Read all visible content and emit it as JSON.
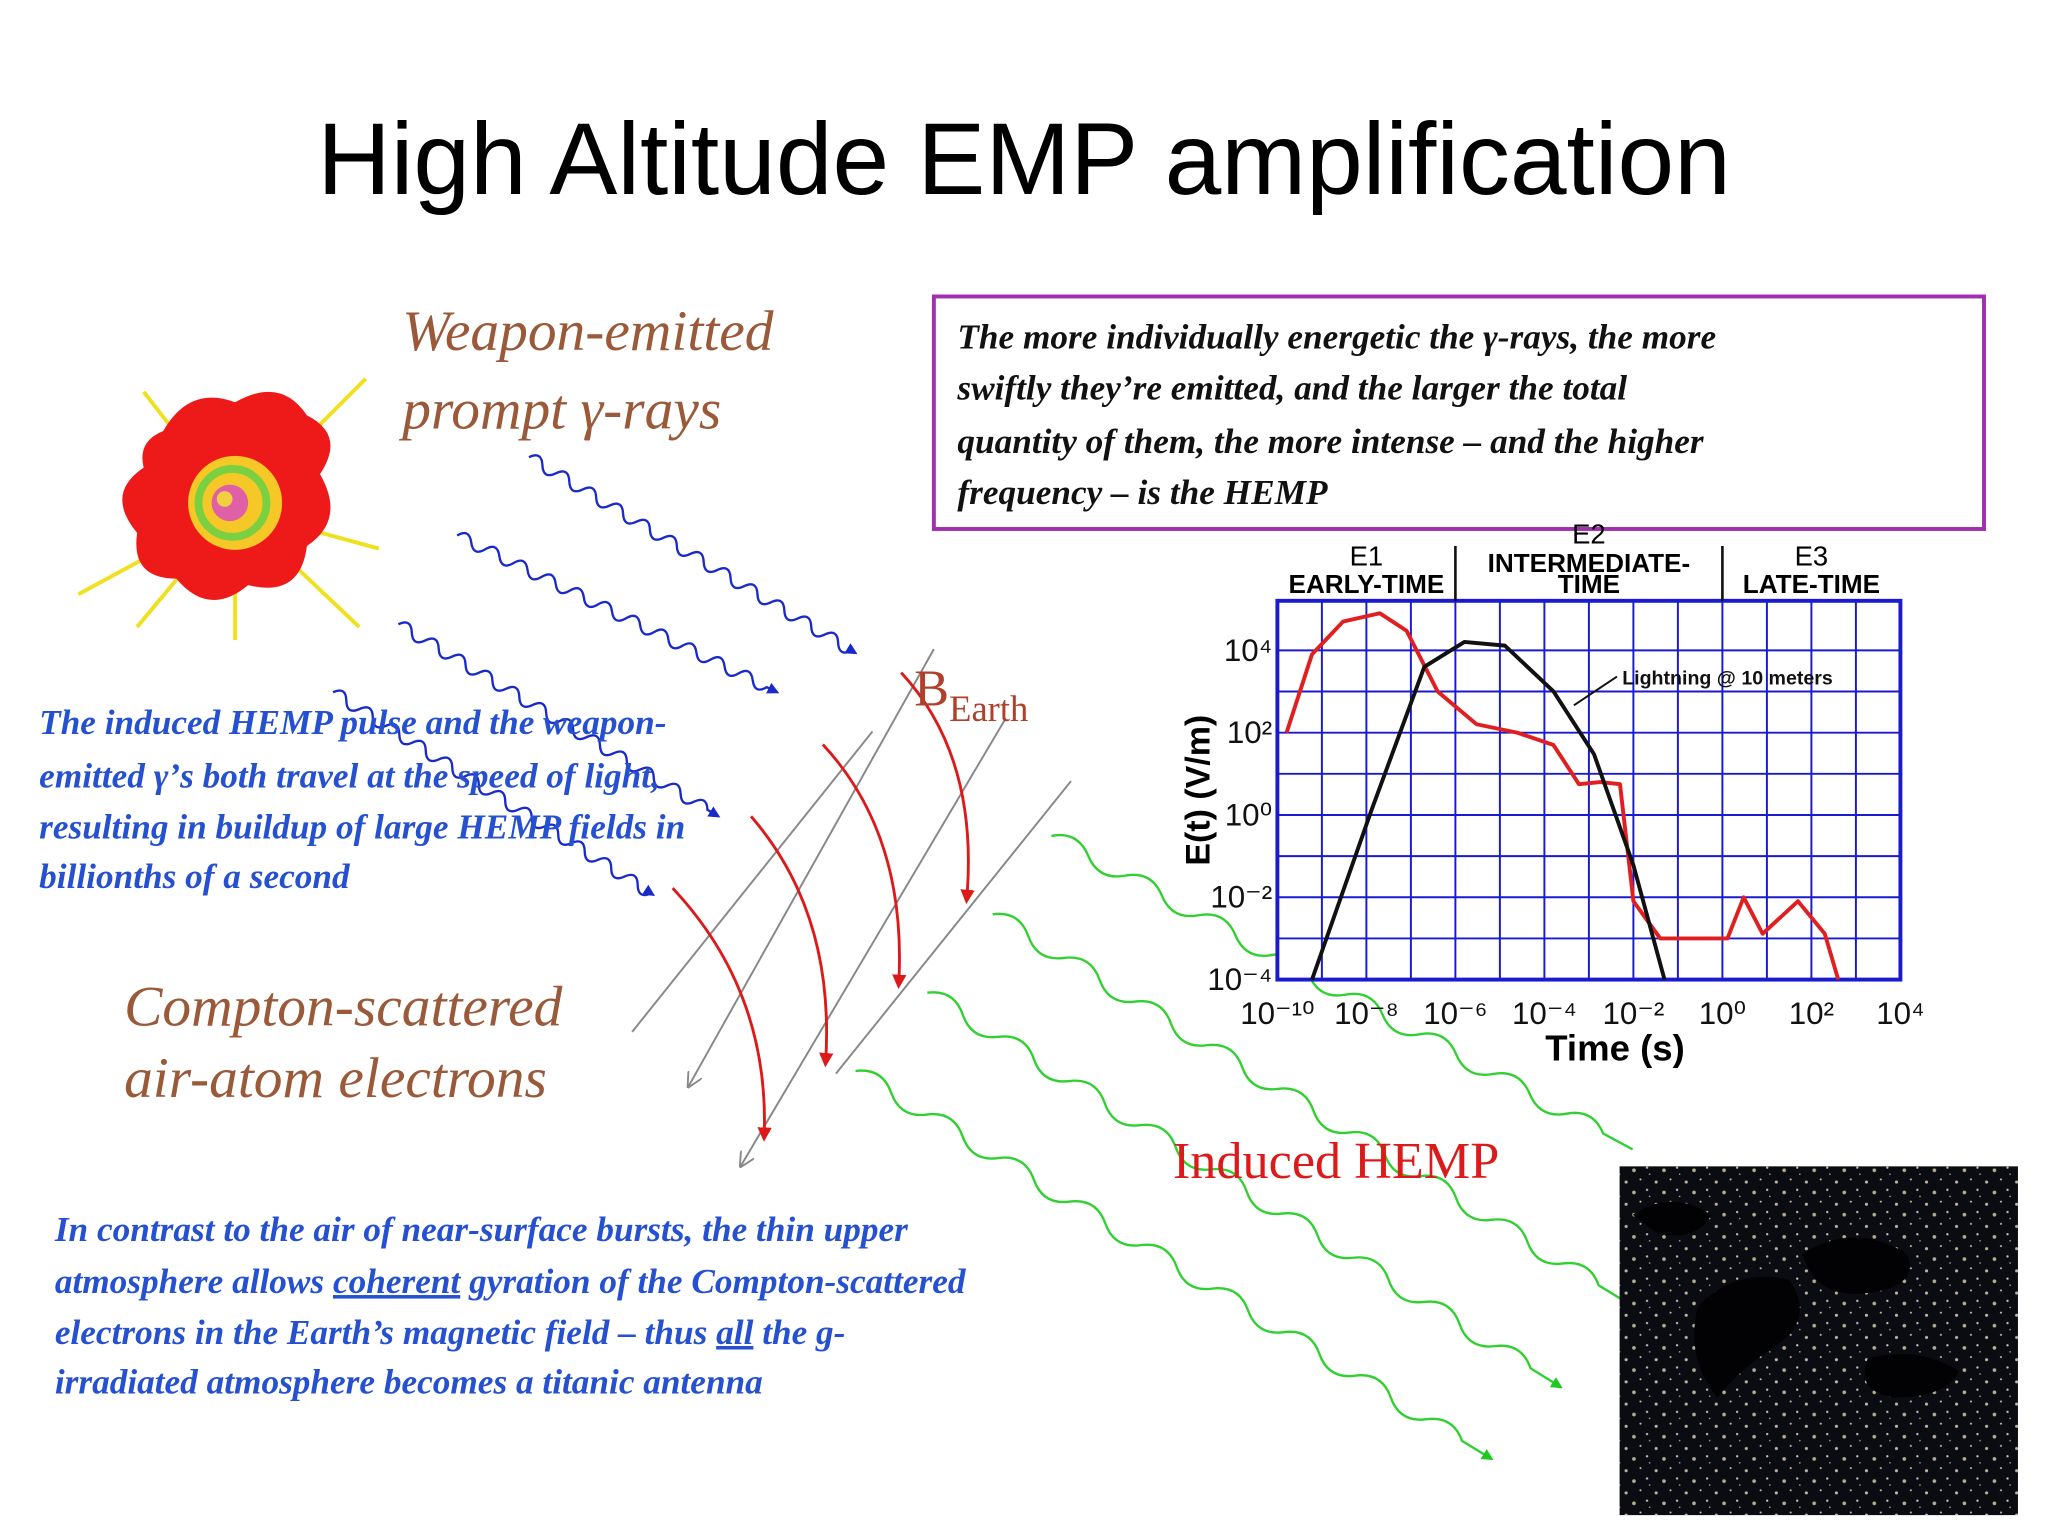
{
  "title": "High Altitude EMP amplification",
  "labels": {
    "weapon_emitted": [
      "Weapon-emitted",
      "prompt γ-rays"
    ],
    "info_box": [
      "The more individually energetic the γ-rays, the more",
      "swiftly they’re emitted, and the larger the total",
      "quantity of them, the more intense – and the higher",
      "frequency – is the HEMP"
    ],
    "induced_pulse": [
      "The induced HEMP pulse and the weapon-",
      "emitted  γ’s both travel at the speed of light,",
      "resulting in buildup of large HEMP fields in",
      "billionths of a second"
    ],
    "compton": [
      "Compton-scattered",
      "air-atom electrons"
    ],
    "b_earth": {
      "symbol": "B",
      "subscript": "Earth"
    },
    "induced_hemp": "Induced HEMP",
    "contrast": [
      "In contrast to the air of near-surface bursts, the thin upper",
      {
        "before": "atmosphere allows ",
        "underlined": "coherent",
        "after": " gyration of the Compton-scattered"
      },
      {
        "before": "electrons in the Earth’s magnetic field – thus ",
        "underlined": "all",
        "after": " the g-"
      },
      "irradiated atmosphere becomes a titanic antenna"
    ]
  },
  "chart_data": {
    "type": "line",
    "x_label": "Time (s)",
    "y_label": "E(t) (V/m)",
    "xlog": true,
    "ylog": true,
    "xlim": [
      1e-10,
      10000
    ],
    "ylim": [
      0.0001,
      160000
    ],
    "xticks": [
      {
        "value": 1e-10,
        "label": "10⁻¹⁰"
      },
      {
        "value": 1e-08,
        "label": "10⁻⁸"
      },
      {
        "value": 1e-06,
        "label": "10⁻⁶"
      },
      {
        "value": 0.0001,
        "label": "10⁻⁴"
      },
      {
        "value": 0.01,
        "label": "10⁻²"
      },
      {
        "value": 1,
        "label": "10⁰"
      },
      {
        "value": 100,
        "label": "10²"
      },
      {
        "value": 10000,
        "label": "10⁴"
      }
    ],
    "yticks": [
      {
        "value": 0.0001,
        "label": "10⁻⁴"
      },
      {
        "value": 0.01,
        "label": "10⁻²"
      },
      {
        "value": 1,
        "label": "10⁰"
      },
      {
        "value": 100,
        "label": "10²"
      },
      {
        "value": 10000,
        "label": "10⁴"
      }
    ],
    "xminor": [
      1e-09,
      1e-07,
      1e-05,
      0.001,
      0.1,
      10,
      1000
    ],
    "yminor": [
      0.001,
      0.1,
      10,
      1000
    ],
    "grid": true,
    "grid_color": "#1a1ad0",
    "regions": [
      {
        "name": "E1",
        "label": [
          "EARLY-TIME"
        ]
      },
      {
        "name": "E2",
        "label": [
          "INTERMEDIATE-",
          "TIME"
        ]
      },
      {
        "name": "E3",
        "label": [
          "LATE-TIME"
        ]
      }
    ],
    "boundaries": [
      1e-06,
      1
    ],
    "annotation": "Lightning @ 10 meters",
    "series": [
      {
        "color": "#e02020",
        "x": [
          1.6e-10,
          6e-10,
          3e-09,
          2e-08,
          8e-08,
          4e-07,
          3e-06,
          2.5e-05,
          0.00016,
          0.0006,
          0.0018,
          0.005,
          0.01,
          0.04,
          1.3,
          3,
          8,
          50,
          200,
          400
        ],
        "values": [
          100,
          8000,
          50000,
          80000,
          30000,
          1000,
          160,
          100,
          50,
          5.6,
          6.3,
          5.6,
          0.008,
          0.001,
          0.001,
          0.01,
          0.0013,
          0.008,
          0.0013,
          0.0001
        ]
      },
      {
        "color": "#111111",
        "x": [
          6e-10,
          1.3e-08,
          2e-07,
          1.6e-06,
          1.3e-05,
          0.00016,
          0.0013,
          0.01,
          0.05
        ],
        "values": [
          0.0001,
          1.3,
          4000,
          16000,
          13000,
          1000,
          30,
          0.06,
          0.0001
        ]
      }
    ]
  }
}
